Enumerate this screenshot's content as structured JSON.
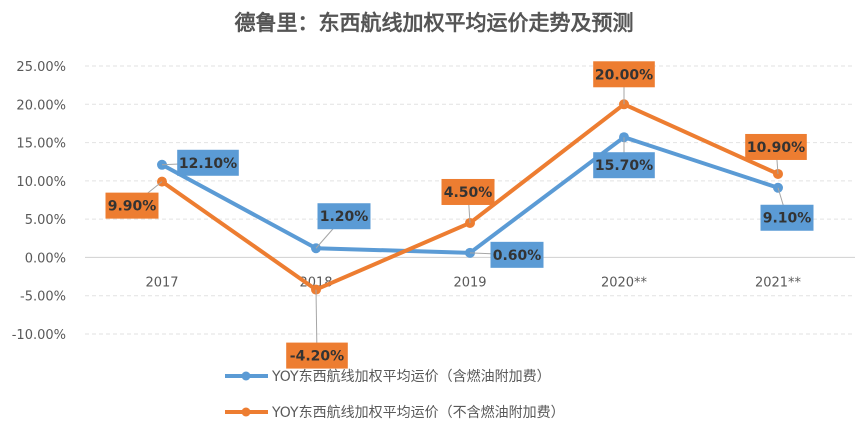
{
  "chart_data": {
    "type": "line",
    "title": "德鲁里：东西航线加权平均运价走势及预测",
    "categories": [
      "2017",
      "2018",
      "2019",
      "2020**",
      "2021**"
    ],
    "ylim": [
      -10,
      25
    ],
    "yticks": [
      "-10.00%",
      "-5.00%",
      "0.00%",
      "5.00%",
      "10.00%",
      "15.00%",
      "20.00%",
      "25.00%"
    ],
    "ytick_values": [
      -10,
      -5,
      0,
      5,
      10,
      15,
      20,
      25
    ],
    "grid": true,
    "legend_position": "bottom",
    "series": [
      {
        "name": "YOY东西航线加权平均运价（含燃油附加费）",
        "color": "#5B9BD5",
        "values": [
          12.1,
          1.2,
          0.6,
          15.7,
          9.1
        ],
        "labels": [
          "12.10%",
          "1.20%",
          "0.60%",
          "15.70%",
          "9.10%"
        ]
      },
      {
        "name": "YOY东西航线加权平均运价（不含燃油附加费）",
        "color": "#ED7D31",
        "values": [
          9.9,
          -4.2,
          4.5,
          20.0,
          10.9
        ],
        "labels": [
          "9.90%",
          "-4.20%",
          "4.50%",
          "20.00%",
          "10.90%"
        ]
      }
    ]
  }
}
